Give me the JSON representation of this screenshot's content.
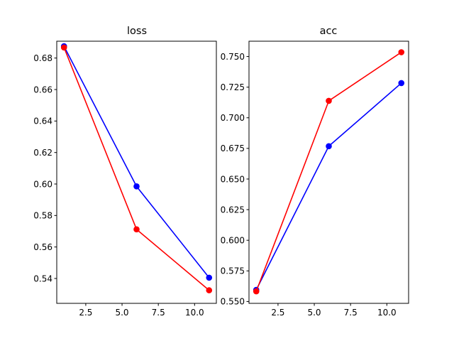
{
  "chart_data": [
    {
      "type": "line",
      "title": "loss",
      "xlabel": "",
      "ylabel": "",
      "x": [
        1,
        6,
        11
      ],
      "xlim": [
        0.5,
        11.5
      ],
      "ylim": [
        0.5242,
        0.6907
      ],
      "xticks": [
        2.5,
        5.0,
        7.5,
        10.0
      ],
      "xtick_labels": [
        "2.5",
        "5.0",
        "7.5",
        "10.0"
      ],
      "yticks": [
        0.54,
        0.56,
        0.58,
        0.6,
        0.62,
        0.64,
        0.66,
        0.68
      ],
      "ytick_labels": [
        "0.54",
        "0.56",
        "0.58",
        "0.60",
        "0.62",
        "0.64",
        "0.66",
        "0.68"
      ],
      "grid": false,
      "series": [
        {
          "values": [
            0.6875,
            0.5985,
            0.5405
          ],
          "color": "#0000ff",
          "marker": "circle"
        },
        {
          "values": [
            0.6867,
            0.5712,
            0.5325
          ],
          "color": "#ff0000",
          "marker": "circle"
        }
      ]
    },
    {
      "type": "line",
      "title": "acc",
      "xlabel": "",
      "ylabel": "",
      "x": [
        1,
        6,
        11
      ],
      "xlim": [
        0.5,
        11.5
      ],
      "ylim": [
        0.5485,
        0.7625
      ],
      "xticks": [
        2.5,
        5.0,
        7.5,
        10.0
      ],
      "xtick_labels": [
        "2.5",
        "5.0",
        "7.5",
        "10.0"
      ],
      "yticks": [
        0.55,
        0.575,
        0.6,
        0.625,
        0.65,
        0.675,
        0.7,
        0.725,
        0.75
      ],
      "ytick_labels": [
        "0.550",
        "0.575",
        "0.600",
        "0.625",
        "0.650",
        "0.675",
        "0.700",
        "0.725",
        "0.750"
      ],
      "grid": false,
      "series": [
        {
          "values": [
            0.5595,
            0.6768,
            0.7283
          ],
          "color": "#0000ff",
          "marker": "circle"
        },
        {
          "values": [
            0.5583,
            0.7138,
            0.7535
          ],
          "color": "#ff0000",
          "marker": "circle"
        }
      ]
    }
  ]
}
